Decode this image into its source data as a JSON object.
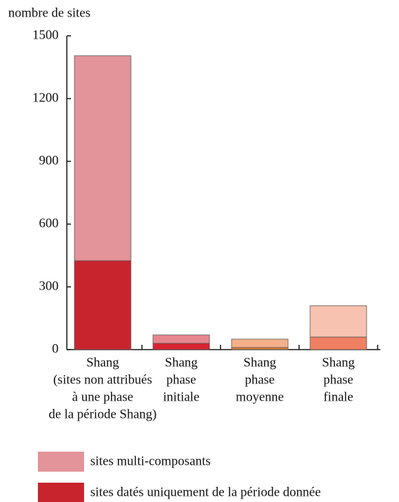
{
  "chart_data": {
    "type": "stacked_bar",
    "y_label": "nombre de sites",
    "categories": [
      [
        "Shang",
        "(sites non attribués",
        "à une phase",
        "de la période Shang)"
      ],
      [
        "Shang",
        "phase",
        "initiale"
      ],
      [
        "Shang",
        "phase",
        "moyenne"
      ],
      [
        "Shang",
        "phase",
        "finale"
      ]
    ],
    "series": [
      {
        "name": "sites datés uniquement de la période donnée",
        "color": "#c8242e",
        "colors": [
          "#c8242e",
          "#d8232f",
          "#e0803a",
          "#f08062"
        ],
        "values": [
          425,
          30,
          10,
          60
        ]
      },
      {
        "name": "sites multi-composants",
        "color": "#e3939a",
        "colors": [
          "#e3939a",
          "#e8868f",
          "#f5b08a",
          "#f8c2b0"
        ],
        "values": [
          980,
          40,
          40,
          150
        ]
      }
    ],
    "ylim": [
      0,
      1500
    ],
    "yticks": [
      0,
      300,
      600,
      900,
      1200,
      1500
    ]
  }
}
